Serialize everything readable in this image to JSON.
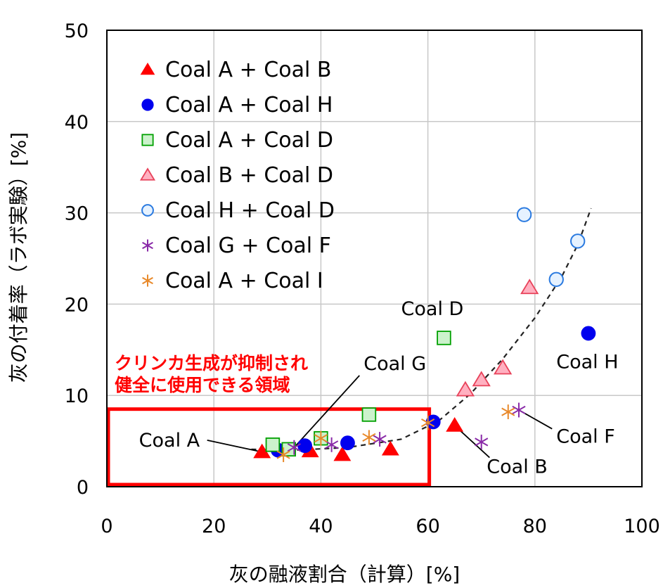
{
  "chart_data": {
    "type": "scatter",
    "xlabel": "灰の融液割合（計算）[%]",
    "ylabel": "灰の付着率（ラボ実験）[%]",
    "xlim": [
      0,
      100
    ],
    "ylim": [
      0,
      50
    ],
    "x_ticks": [
      "0",
      "20",
      "40",
      "60",
      "80",
      "100"
    ],
    "y_ticks": [
      "0",
      "10",
      "20",
      "30",
      "40",
      "50"
    ],
    "grid": true,
    "legend_position": "top-left",
    "series": [
      {
        "name": "Coal A + Coal B",
        "marker": "triangle-filled",
        "color": "#ff0000",
        "points": [
          [
            29,
            3.8
          ],
          [
            38,
            3.9
          ],
          [
            44,
            3.5
          ],
          [
            53,
            4.1
          ],
          [
            65,
            6.7
          ]
        ]
      },
      {
        "name": "Coal A + Coal H",
        "marker": "circle-filled",
        "color": "#0000ee",
        "points": [
          [
            32,
            4.0
          ],
          [
            37,
            4.5
          ],
          [
            45,
            4.8
          ],
          [
            61,
            7.1
          ],
          [
            90,
            16.8
          ]
        ]
      },
      {
        "name": "Coal A + Coal D",
        "marker": "square-open",
        "color": "#00a000",
        "fill": "#ccf2cc",
        "points": [
          [
            31,
            4.6
          ],
          [
            34,
            4.1
          ],
          [
            40,
            5.3
          ],
          [
            49,
            7.9
          ],
          [
            63,
            16.3
          ]
        ]
      },
      {
        "name": "Coal B + Coal D",
        "marker": "triangle-open",
        "color": "#e8425a",
        "fill": "#ffb0c0",
        "points": [
          [
            67,
            10.6
          ],
          [
            70,
            11.7
          ],
          [
            74,
            13.0
          ],
          [
            79,
            21.8
          ]
        ]
      },
      {
        "name": "Coal H + Coal D",
        "marker": "circle-open",
        "color": "#2a7ae0",
        "fill": "#e6f2ff",
        "points": [
          [
            78,
            29.8
          ],
          [
            84,
            22.7
          ],
          [
            88,
            26.9
          ]
        ]
      },
      {
        "name": "Coal G + Coal F",
        "marker": "star",
        "color": "#8a2aa8",
        "points": [
          [
            35,
            4.3
          ],
          [
            42,
            4.6
          ],
          [
            51,
            5.2
          ],
          [
            70,
            4.9
          ],
          [
            77,
            8.4
          ]
        ]
      },
      {
        "name": "Coal A + Coal I",
        "marker": "star",
        "color": "#e8892a",
        "points": [
          [
            33,
            3.5
          ],
          [
            40,
            5.3
          ],
          [
            49,
            5.4
          ],
          [
            60,
            7.0
          ],
          [
            75,
            8.2
          ]
        ]
      }
    ],
    "trend_line": [
      [
        27,
        4.1
      ],
      [
        35,
        4.0
      ],
      [
        45,
        4.3
      ],
      [
        55,
        5.2
      ],
      [
        62,
        7.2
      ],
      [
        68,
        10.2
      ],
      [
        74,
        14.0
      ],
      [
        80,
        18.5
      ],
      [
        85,
        23.0
      ],
      [
        88,
        26.5
      ],
      [
        90.5,
        30.5
      ]
    ],
    "annotations": [
      {
        "text": "Coal A",
        "at": [
          6,
          4.4
        ],
        "point": [
          29,
          3.8
        ]
      },
      {
        "text": "Coal G",
        "at": [
          48,
          12.8
        ],
        "point": [
          35,
          4.3
        ]
      },
      {
        "text": "Coal D",
        "at": [
          55,
          18.8
        ],
        "point": [
          63,
          16.3
        ]
      },
      {
        "text": "Coal H",
        "at": [
          84,
          13.0
        ],
        "point": [
          90,
          16.8
        ]
      },
      {
        "text": "Coal F",
        "at": [
          84,
          4.8
        ],
        "point": [
          77,
          8.4
        ]
      },
      {
        "text": "Coal B",
        "at": [
          71,
          1.5
        ],
        "point": [
          65,
          6.7
        ]
      }
    ],
    "highlight": {
      "label_line1": "クリンカ生成が抑制され",
      "label_line2": "健全に使用できる領域",
      "x_range": [
        0,
        60
      ],
      "y_range": [
        0,
        8.5
      ],
      "color": "#ff0000"
    }
  }
}
